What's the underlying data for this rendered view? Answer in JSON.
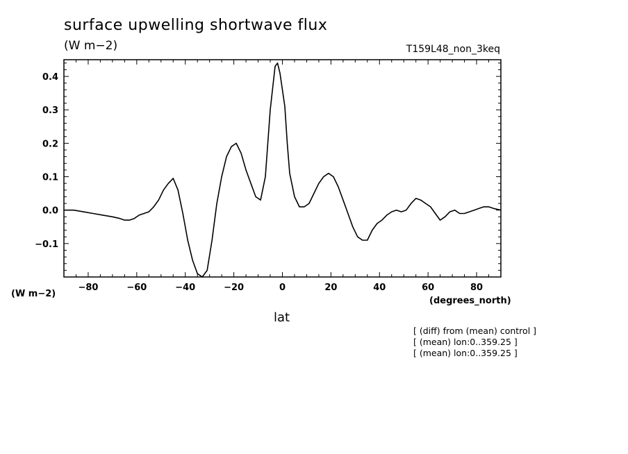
{
  "chart_data": {
    "type": "line",
    "title": "surface upwelling shortwave flux",
    "units": "(W m−2)",
    "experiment": "T159L48_non_3keq",
    "xlabel": "lat",
    "ylabel": "",
    "y_unit": "(W m−2)",
    "x_unit": "(degrees_north)",
    "xlim": [
      -90,
      90
    ],
    "ylim": [
      -0.2,
      0.45
    ],
    "xticks": [
      -80,
      -60,
      -40,
      -20,
      0,
      20,
      40,
      60,
      80
    ],
    "xtick_labels": [
      "−80",
      "−60",
      "−40",
      "−20",
      "0",
      "20",
      "40",
      "60",
      "80"
    ],
    "yticks": [
      -0.1,
      0.0,
      0.1,
      0.2,
      0.3,
      0.4
    ],
    "ytick_labels": [
      "−0.1",
      "0.0",
      "0.1",
      "0.2",
      "0.3",
      "0.4"
    ],
    "grid": false,
    "notes": [
      "[ (diff) from (mean) control ]",
      "[ (mean) lon:0..359.25 ]",
      "[ (mean) lon:0..359.25 ]"
    ],
    "series": [
      {
        "color": "#000000",
        "x": [
          -90,
          -86,
          -82,
          -78,
          -74,
          -70,
          -67,
          -65,
          -63,
          -61,
          -59,
          -57,
          -55,
          -53,
          -51,
          -49,
          -47,
          -45,
          -43,
          -41,
          -39,
          -37,
          -35,
          -33,
          -31,
          -29,
          -27,
          -25,
          -23,
          -21,
          -19,
          -17,
          -15,
          -13,
          -11,
          -9,
          -7,
          -5,
          -3,
          -2,
          -1,
          0,
          1,
          2,
          3,
          5,
          7,
          9,
          11,
          13,
          15,
          17,
          19,
          21,
          23,
          25,
          27,
          29,
          31,
          33,
          35,
          37,
          39,
          41,
          43,
          45,
          47,
          49,
          51,
          53,
          55,
          57,
          59,
          61,
          63,
          65,
          67,
          69,
          71,
          73,
          75,
          77,
          79,
          81,
          83,
          85,
          87,
          90
        ],
        "y": [
          0.0,
          0.0,
          -0.005,
          -0.01,
          -0.015,
          -0.02,
          -0.025,
          -0.03,
          -0.03,
          -0.025,
          -0.015,
          -0.01,
          -0.005,
          0.01,
          0.03,
          0.06,
          0.08,
          0.095,
          0.06,
          -0.01,
          -0.09,
          -0.15,
          -0.19,
          -0.2,
          -0.18,
          -0.09,
          0.02,
          0.1,
          0.16,
          0.19,
          0.2,
          0.17,
          0.12,
          0.08,
          0.04,
          0.03,
          0.1,
          0.3,
          0.43,
          0.44,
          0.41,
          0.36,
          0.31,
          0.2,
          0.11,
          0.04,
          0.01,
          0.01,
          0.02,
          0.05,
          0.08,
          0.1,
          0.11,
          0.1,
          0.07,
          0.03,
          -0.01,
          -0.05,
          -0.08,
          -0.09,
          -0.09,
          -0.06,
          -0.04,
          -0.03,
          -0.015,
          -0.005,
          0.0,
          -0.005,
          0.0,
          0.02,
          0.035,
          0.03,
          0.02,
          0.01,
          -0.01,
          -0.03,
          -0.02,
          -0.005,
          0.0,
          -0.01,
          -0.01,
          -0.005,
          0.0,
          0.005,
          0.01,
          0.01,
          0.005,
          0.0
        ]
      }
    ]
  }
}
